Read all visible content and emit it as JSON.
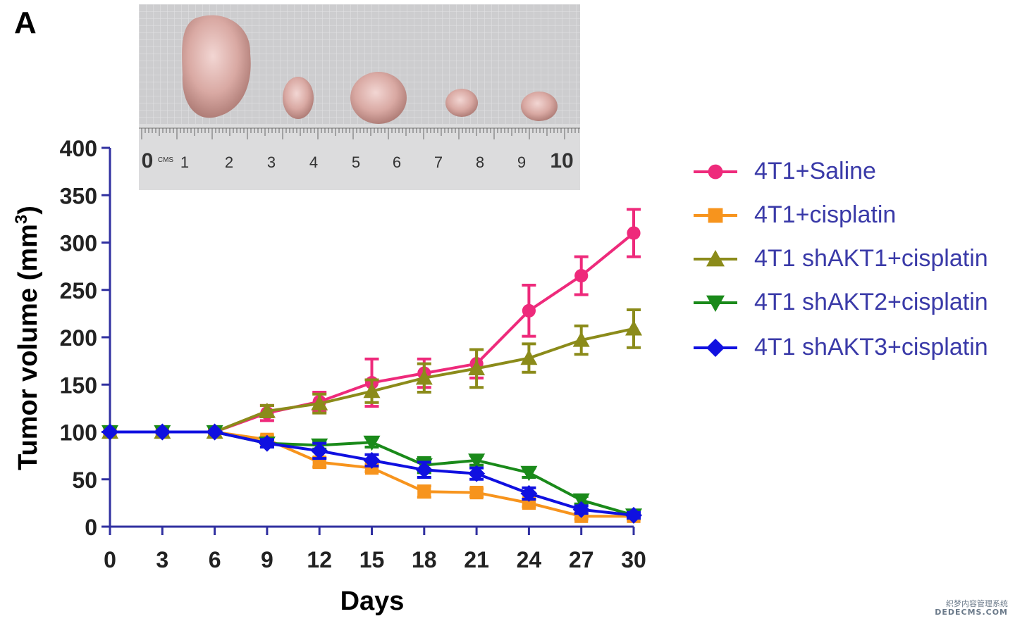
{
  "panel_label": "A",
  "photo": {
    "ruler_labels": [
      "0",
      "CMS",
      "1",
      "2",
      "3",
      "4",
      "5",
      "6",
      "7",
      "8",
      "9",
      "10"
    ]
  },
  "chart_data": {
    "type": "line",
    "xlabel": "Days",
    "ylabel": "Tumor volume (mm",
    "ylabel_superscript": "3",
    "ylabel_close": ")",
    "x": [
      0,
      3,
      6,
      9,
      12,
      15,
      18,
      21,
      24,
      27,
      30
    ],
    "xlim": [
      0,
      30
    ],
    "ylim": [
      0,
      400
    ],
    "yticks": [
      0,
      50,
      100,
      150,
      200,
      250,
      300,
      350,
      400
    ],
    "grid": false,
    "legend_position": "right",
    "series": [
      {
        "name": "4T1+Saline",
        "color": "#ee2a7b",
        "marker": "circle",
        "values": [
          100,
          100,
          100,
          120,
          132,
          152,
          162,
          172,
          228,
          265,
          310
        ],
        "errors": [
          0,
          0,
          0,
          8,
          10,
          25,
          15,
          15,
          27,
          20,
          25
        ]
      },
      {
        "name": "4T1+cisplatin",
        "color": "#f7941d",
        "marker": "square",
        "values": [
          100,
          100,
          100,
          92,
          68,
          62,
          37,
          36,
          25,
          11,
          11
        ],
        "errors": [
          0,
          0,
          0,
          4,
          5,
          4,
          6,
          4,
          4,
          3,
          3
        ]
      },
      {
        "name": "4T1 shAKT1+cisplatin",
        "color": "#8b8b1a",
        "marker": "triangle-up",
        "values": [
          100,
          100,
          100,
          122,
          130,
          143,
          157,
          167,
          178,
          197,
          209
        ],
        "errors": [
          0,
          0,
          0,
          6,
          10,
          12,
          15,
          20,
          15,
          15,
          20
        ]
      },
      {
        "name": "4T1 shAKT2+cisplatin",
        "color": "#1a8a1a",
        "marker": "triangle-down",
        "values": [
          100,
          100,
          100,
          88,
          86,
          89,
          65,
          70,
          57,
          28,
          12
        ],
        "errors": [
          0,
          0,
          0,
          4,
          4,
          5,
          8,
          5,
          5,
          4,
          3
        ]
      },
      {
        "name": "4T1 shAKT3+cisplatin",
        "color": "#1010e0",
        "marker": "diamond",
        "values": [
          100,
          100,
          100,
          88,
          80,
          70,
          60,
          56,
          35,
          18,
          12
        ],
        "errors": [
          0,
          0,
          0,
          4,
          8,
          6,
          8,
          6,
          6,
          4,
          3
        ]
      }
    ]
  },
  "watermark": {
    "line1": "织梦内容管理系统",
    "line2": "DEDECMS.COM"
  }
}
